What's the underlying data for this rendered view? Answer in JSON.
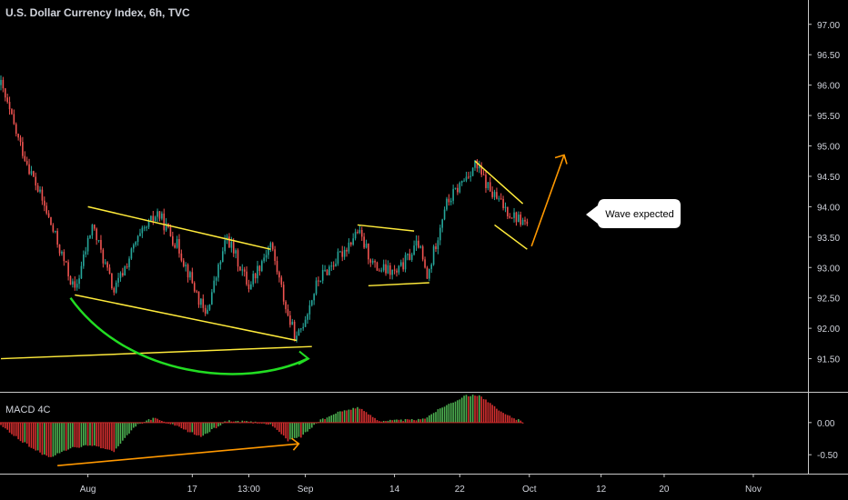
{
  "title": "U.S. Dollar Currency Index, 6h, TVC",
  "macd_label": "MACD 4C",
  "callout": "Wave expected",
  "colors": {
    "background": "#000000",
    "text": "#d1d4dc",
    "up": "#26a69a",
    "down": "#ef5350",
    "macd_up": "#4caf50",
    "macd_down": "#d32f2f",
    "trendline": "#ffeb3b",
    "arc": "#22dd22",
    "arrow": "#ff9800",
    "callout_bg": "#ffffff",
    "callout_text": "#000000",
    "divider": "#c8c8c8"
  },
  "chart_data": [
    {
      "type": "candlestick",
      "title": "U.S. Dollar Currency Index, 6h, TVC",
      "y_ticks": [
        "97.00",
        "96.50",
        "96.00",
        "95.50",
        "95.00",
        "94.50",
        "94.00",
        "93.50",
        "93.00",
        "92.50",
        "92.00",
        "91.50"
      ],
      "ylim": [
        91.0,
        97.4
      ],
      "x_ticks": [
        "Aug",
        "17",
        "13:00",
        "Sep",
        "14",
        "22",
        "Oct",
        "12",
        "20",
        "Nov"
      ],
      "price_path": [
        {
          "bar": 0,
          "price": 96.0
        },
        {
          "bar": 8,
          "price": 95.1
        },
        {
          "bar": 20,
          "price": 94.0
        },
        {
          "bar": 34,
          "price": 92.6
        },
        {
          "bar": 42,
          "price": 93.7
        },
        {
          "bar": 52,
          "price": 92.6
        },
        {
          "bar": 62,
          "price": 93.4
        },
        {
          "bar": 72,
          "price": 93.9
        },
        {
          "bar": 82,
          "price": 93.3
        },
        {
          "bar": 94,
          "price": 92.2
        },
        {
          "bar": 104,
          "price": 93.5
        },
        {
          "bar": 114,
          "price": 92.7
        },
        {
          "bar": 124,
          "price": 93.4
        },
        {
          "bar": 132,
          "price": 92.2
        },
        {
          "bar": 136,
          "price": 91.8
        },
        {
          "bar": 146,
          "price": 92.8
        },
        {
          "bar": 156,
          "price": 93.2
        },
        {
          "bar": 164,
          "price": 93.6
        },
        {
          "bar": 172,
          "price": 93.0
        },
        {
          "bar": 182,
          "price": 92.9
        },
        {
          "bar": 192,
          "price": 93.4
        },
        {
          "bar": 196,
          "price": 92.8
        },
        {
          "bar": 204,
          "price": 94.0
        },
        {
          "bar": 212,
          "price": 94.4
        },
        {
          "bar": 218,
          "price": 94.7
        },
        {
          "bar": 226,
          "price": 94.2
        },
        {
          "bar": 234,
          "price": 93.9
        },
        {
          "bar": 242,
          "price": 93.7
        }
      ],
      "annotations": {
        "channel_upper": [
          {
            "bar": 40,
            "price": 94.0
          },
          {
            "bar": 124,
            "price": 93.3
          }
        ],
        "channel_lower": [
          {
            "bar": 34,
            "price": 92.55
          },
          {
            "bar": 136,
            "price": 91.8
          }
        ],
        "support_line": [
          {
            "bar": 0,
            "price": 91.5
          },
          {
            "bar": 143,
            "price": 91.7
          }
        ],
        "flag_upper": [
          {
            "bar": 164,
            "price": 93.7
          },
          {
            "bar": 190,
            "price": 93.6
          }
        ],
        "flag_lower": [
          {
            "bar": 169,
            "price": 92.7
          },
          {
            "bar": 197,
            "price": 92.75
          }
        ],
        "wedge_upper": [
          {
            "bar": 218,
            "price": 94.75
          },
          {
            "bar": 240,
            "price": 94.05
          }
        ],
        "wedge_lower": [
          {
            "bar": 227,
            "price": 93.7
          },
          {
            "bar": 242,
            "price": 93.3
          }
        ],
        "arrow_up": [
          {
            "bar": 244,
            "price": 93.35
          },
          {
            "bar": 259,
            "price": 94.85
          }
        ]
      }
    },
    {
      "type": "histogram",
      "title": "MACD 4C",
      "y_ticks": [
        "0.00",
        "-0.50"
      ],
      "ylim": [
        -0.78,
        0.45
      ],
      "values_path": [
        {
          "bar": 0,
          "value": -0.05
        },
        {
          "bar": 10,
          "value": -0.3
        },
        {
          "bar": 22,
          "value": -0.55
        },
        {
          "bar": 32,
          "value": -0.4
        },
        {
          "bar": 42,
          "value": -0.35
        },
        {
          "bar": 52,
          "value": -0.45
        },
        {
          "bar": 62,
          "value": -0.05
        },
        {
          "bar": 70,
          "value": 0.07
        },
        {
          "bar": 80,
          "value": -0.05
        },
        {
          "bar": 92,
          "value": -0.22
        },
        {
          "bar": 104,
          "value": 0.03
        },
        {
          "bar": 114,
          "value": 0.01
        },
        {
          "bar": 124,
          "value": -0.02
        },
        {
          "bar": 132,
          "value": -0.28
        },
        {
          "bar": 138,
          "value": -0.22
        },
        {
          "bar": 146,
          "value": 0.02
        },
        {
          "bar": 156,
          "value": 0.17
        },
        {
          "bar": 164,
          "value": 0.24
        },
        {
          "bar": 174,
          "value": 0.03
        },
        {
          "bar": 186,
          "value": 0.04
        },
        {
          "bar": 194,
          "value": 0.05
        },
        {
          "bar": 204,
          "value": 0.26
        },
        {
          "bar": 214,
          "value": 0.42
        },
        {
          "bar": 220,
          "value": 0.43
        },
        {
          "bar": 230,
          "value": 0.16
        },
        {
          "bar": 240,
          "value": 0.01
        }
      ],
      "annotations": {
        "divergence_arrow": [
          {
            "bar": 26,
            "value": -0.67
          },
          {
            "bar": 137,
            "value": -0.33
          }
        ]
      }
    }
  ]
}
